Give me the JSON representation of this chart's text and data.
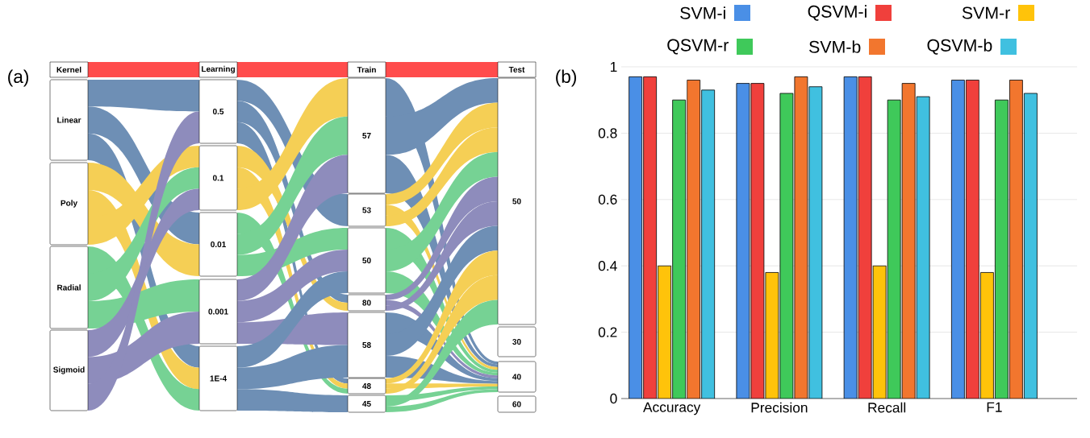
{
  "chart_data": [
    {
      "type": "other",
      "title": "(a)",
      "categories": [
        "Kernel",
        "Learning",
        "Train",
        "Test"
      ],
      "annotations": [
        {
          "text": "Linear",
          "x": "Kernel"
        },
        {
          "text": "Poly",
          "x": "Kernel"
        },
        {
          "text": "Radial",
          "x": "Kernel"
        },
        {
          "text": "Sigmoid",
          "x": "Kernel"
        },
        {
          "text": "0.5",
          "x": "Learning"
        },
        {
          "text": "0.1",
          "x": "Learning"
        },
        {
          "text": "0.01",
          "x": "Learning"
        },
        {
          "text": "0.001",
          "x": "Learning"
        },
        {
          "text": "1E-4",
          "x": "Learning"
        },
        {
          "text": "57",
          "x": "Train"
        },
        {
          "text": "53",
          "x": "Train"
        },
        {
          "text": "50",
          "x": "Train"
        },
        {
          "text": "80",
          "x": "Train"
        },
        {
          "text": "58",
          "x": "Train"
        },
        {
          "text": "48",
          "x": "Train"
        },
        {
          "text": "45",
          "x": "Train"
        },
        {
          "text": "50",
          "x": "Test"
        },
        {
          "text": "30",
          "x": "Test"
        },
        {
          "text": "40",
          "x": "Test"
        },
        {
          "text": "60",
          "x": "Test"
        }
      ]
    },
    {
      "type": "bar",
      "title": "(b)",
      "categories": [
        "Accuracy",
        "Precision",
        "Recall",
        "F1"
      ],
      "series": [
        {
          "name": "SVM-i",
          "color": "#4a8fe6",
          "values": [
            0.97,
            0.95,
            0.97,
            0.96
          ]
        },
        {
          "name": "QSVM-i",
          "color": "#f0403c",
          "values": [
            0.97,
            0.95,
            0.97,
            0.96
          ]
        },
        {
          "name": "SVM-r",
          "color": "#ffc30a",
          "values": [
            0.4,
            0.38,
            0.4,
            0.38
          ]
        },
        {
          "name": "QSVM-r",
          "color": "#3fc95a",
          "values": [
            0.9,
            0.92,
            0.9,
            0.9
          ]
        },
        {
          "name": "SVM-b",
          "color": "#f2762e",
          "values": [
            0.96,
            0.97,
            0.95,
            0.96
          ]
        },
        {
          "name": "QSVM-b",
          "color": "#40c0e0",
          "values": [
            0.93,
            0.94,
            0.91,
            0.92
          ]
        }
      ],
      "ylim": [
        0,
        1
      ],
      "yticks": [
        0,
        0.2,
        0.4,
        0.6,
        0.8,
        1
      ],
      "grid": "y",
      "legend": "top"
    }
  ]
}
